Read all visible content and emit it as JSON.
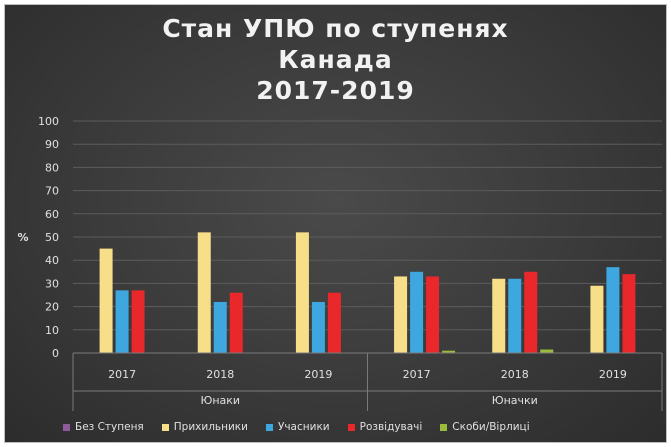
{
  "chart_data": {
    "type": "bar",
    "title_lines": [
      "Стан УПЮ по ступенях",
      "Канада",
      "2017-2019"
    ],
    "ylabel": "%",
    "ylim": [
      0,
      100
    ],
    "yticks": [
      "0",
      "10",
      "20",
      "30",
      "40",
      "50",
      "60",
      "70",
      "80",
      "90",
      "100"
    ],
    "grid": true,
    "legend_position": "bottom",
    "groups": [
      {
        "label": "Юнаки",
        "categories": [
          "2017",
          "2018",
          "2019"
        ]
      },
      {
        "label": "Юначки",
        "categories": [
          "2017",
          "2018",
          "2019"
        ]
      }
    ],
    "categories": [
      "2017",
      "2018",
      "2019",
      "2017",
      "2018",
      "2019"
    ],
    "series": [
      {
        "name": "Без Ступеня",
        "color": "#8e5a9e",
        "values": [
          0,
          0,
          0,
          0,
          0,
          0
        ]
      },
      {
        "name": "Прихильники",
        "color": "#f7df8a",
        "values": [
          45,
          52,
          52,
          33,
          32,
          29
        ]
      },
      {
        "name": "Учасники",
        "color": "#3fa7e0",
        "values": [
          27,
          22,
          22,
          35,
          32,
          37
        ]
      },
      {
        "name": "Розвідувачі",
        "color": "#e8282a",
        "values": [
          27,
          26,
          26,
          33,
          35,
          34
        ]
      },
      {
        "name": "Скоби/Вірлиці",
        "color": "#9bbb3c",
        "values": [
          0,
          0,
          0,
          1,
          1.5,
          0
        ]
      }
    ]
  }
}
